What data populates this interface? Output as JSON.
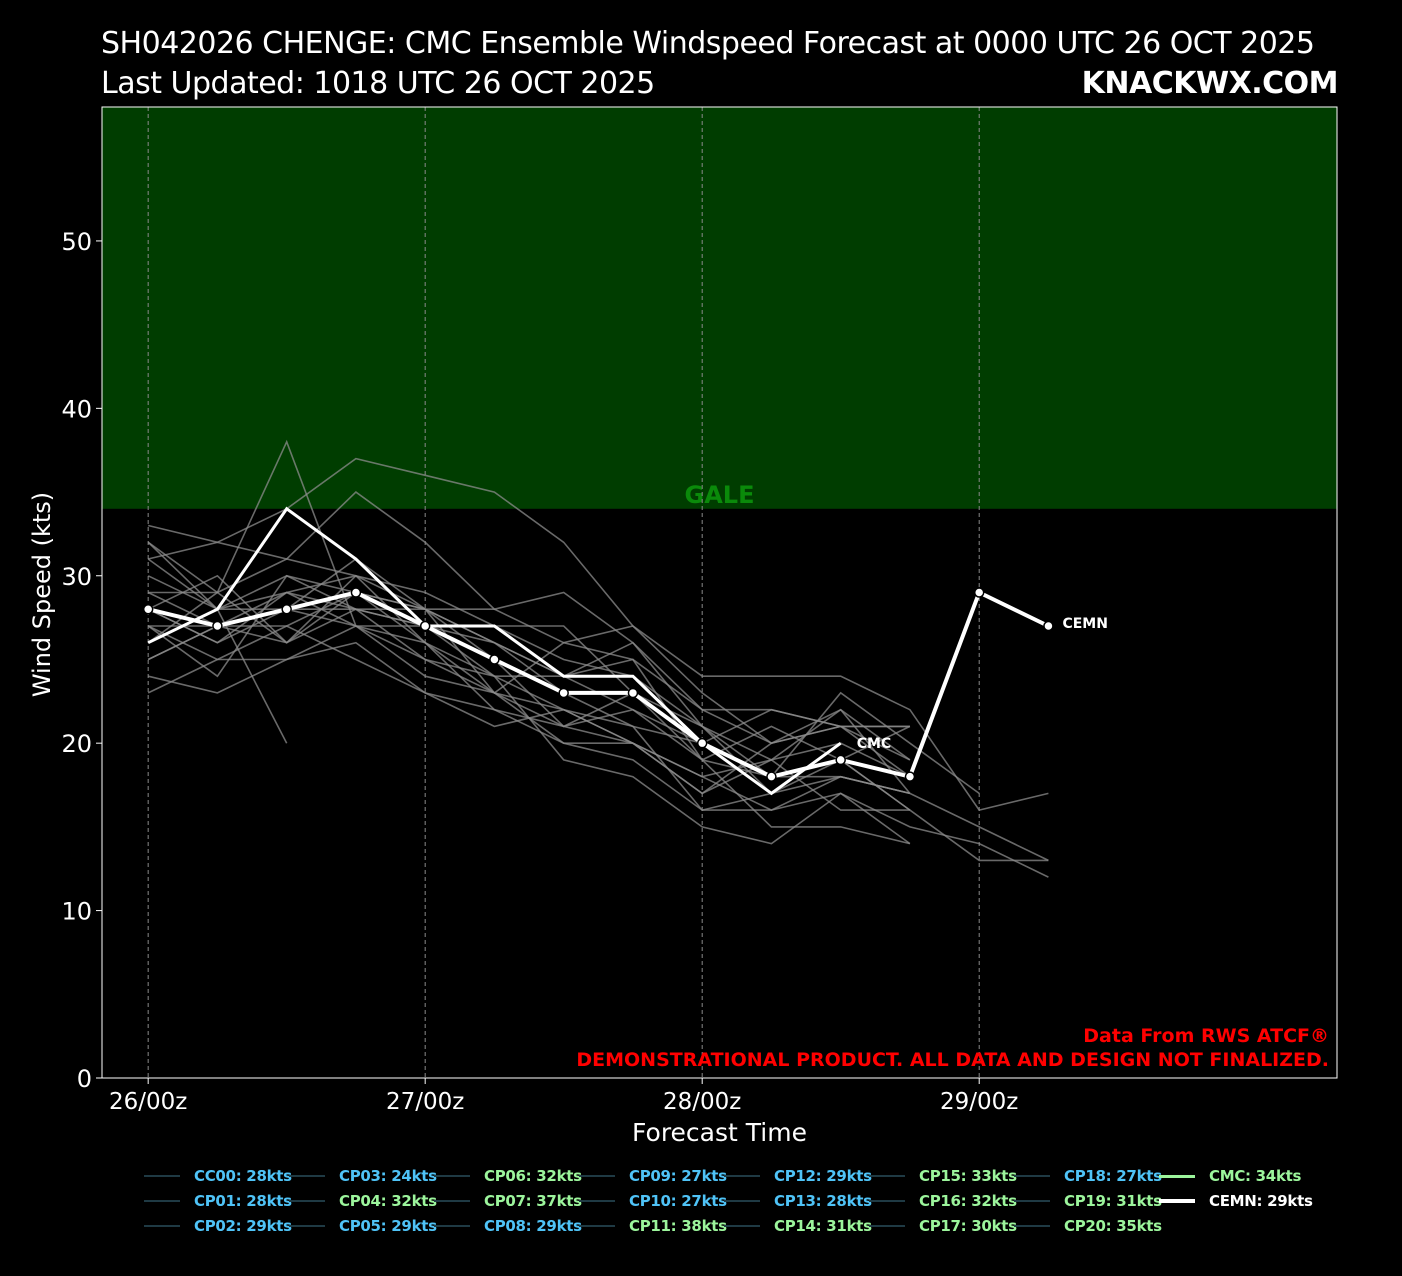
{
  "header": {
    "title": "SH042026 CHENGE: CMC Ensemble Windspeed Forecast at 0000 UTC 26 OCT 2025",
    "subtitle": "Last Updated: 1018 UTC 26 OCT 2025",
    "brand": "KNACKWX.COM"
  },
  "colors": {
    "background": "#000000",
    "gale_band": "#003d00",
    "gale_label": "#0a8a0a",
    "member_line": "#8c8c8c",
    "deterministic": "#ffffff",
    "mean": "#ffffff",
    "disclaimer": "#ff0000",
    "legend_cyan": "#4fc3f7",
    "legend_green": "#9cf59c"
  },
  "chart_data": {
    "type": "line",
    "xlabel": "Forecast Time",
    "ylabel": "Wind Speed (kts)",
    "ylim": [
      0,
      58
    ],
    "yticks": [
      0,
      10,
      20,
      30,
      40,
      50
    ],
    "xlim_hours": [
      -4,
      103
    ],
    "xticks": [
      {
        "hour": 0,
        "label": "26/00z"
      },
      {
        "hour": 24,
        "label": "27/00z"
      },
      {
        "hour": 48,
        "label": "28/00z"
      },
      {
        "hour": 72,
        "label": "29/00z"
      }
    ],
    "grid": "vertical dashed at x ticks",
    "threshold_band": {
      "label": "GALE",
      "from": 34,
      "to": 58
    },
    "annotations": {
      "source": "Data From RWS ATCF®",
      "disclaimer": "DEMONSTRATIONAL PRODUCT. ALL DATA AND DESIGN NOT FINALIZED."
    },
    "x_hours": [
      0,
      6,
      12,
      18,
      24,
      30,
      36,
      42,
      48,
      54,
      60,
      66,
      72,
      78
    ],
    "members": [
      {
        "values": [
          32,
          28,
          28,
          27,
          27,
          24,
          22,
          20,
          18,
          16,
          18,
          17,
          15,
          13
        ]
      },
      {
        "values": [
          33,
          32,
          34,
          37,
          36,
          35,
          32,
          27,
          24,
          24,
          24,
          22,
          16,
          17
        ]
      },
      {
        "values": [
          31,
          32,
          31,
          35,
          32,
          28,
          29,
          26,
          22,
          22,
          21,
          21,
          null,
          null
        ]
      },
      {
        "values": [
          29,
          29,
          38,
          27,
          26,
          24,
          24,
          22,
          20,
          18,
          23,
          20,
          17,
          null
        ]
      },
      {
        "values": [
          28,
          26,
          29,
          30,
          28,
          28,
          26,
          27,
          23,
          20,
          22,
          17,
          null,
          null
        ]
      },
      {
        "values": [
          27,
          24,
          30,
          29,
          28,
          25,
          21,
          23,
          19,
          21,
          19,
          16,
          null,
          null
        ]
      },
      {
        "values": [
          26,
          29,
          31,
          30,
          29,
          27,
          25,
          24,
          21,
          18,
          18,
          17,
          null,
          null
        ]
      },
      {
        "values": [
          25,
          27,
          26,
          28,
          27,
          26,
          23,
          21,
          20,
          22,
          21,
          19,
          null,
          null
        ]
      },
      {
        "values": [
          24,
          23,
          25,
          27,
          25,
          23,
          22,
          20,
          17,
          19,
          20,
          18,
          null,
          null
        ]
      },
      {
        "values": [
          23,
          25,
          27,
          29,
          26,
          22,
          20,
          19,
          16,
          16,
          17,
          14,
          null,
          null
        ]
      },
      {
        "values": [
          28,
          26,
          28,
          28,
          25,
          24,
          19,
          18,
          15,
          14,
          17,
          15,
          14,
          12
        ]
      },
      {
        "values": [
          30,
          28,
          29,
          27,
          24,
          23,
          20,
          20,
          18,
          19,
          16,
          16,
          13,
          13
        ]
      },
      {
        "values": [
          27,
          25,
          25,
          26,
          23,
          22,
          21,
          22,
          19,
          15,
          15,
          14,
          null,
          null
        ]
      },
      {
        "values": [
          29,
          27,
          27,
          25,
          23,
          21,
          22,
          21,
          16,
          17,
          19,
          16,
          null,
          null
        ]
      },
      {
        "values": [
          28,
          30,
          26,
          29,
          28,
          23,
          26,
          25,
          22,
          20,
          21,
          18,
          null,
          null
        ]
      },
      {
        "values": [
          26,
          28,
          30,
          28,
          28,
          26,
          24,
          25,
          19,
          18,
          19,
          21,
          null,
          null
        ]
      },
      {
        "values": [
          31,
          28,
          20,
          null,
          null,
          null,
          null,
          null,
          null,
          null,
          null,
          null,
          null,
          null
        ]
      },
      {
        "values": [
          25,
          27,
          29,
          28,
          27,
          27,
          27,
          23,
          21,
          17,
          18,
          17,
          null,
          null
        ]
      },
      {
        "values": [
          32,
          29,
          26,
          30,
          26,
          23,
          21,
          20,
          17,
          20,
          21,
          21,
          null,
          null
        ]
      },
      {
        "values": [
          27,
          27,
          28,
          31,
          28,
          26,
          24,
          26,
          21,
          19,
          22,
          19,
          null,
          null
        ]
      }
    ],
    "deterministic": {
      "label": "CMC",
      "x_hours": [
        0,
        6,
        12,
        18,
        24,
        30,
        36,
        42,
        48,
        54,
        60
      ],
      "values": [
        26,
        28,
        34,
        31,
        27,
        27,
        24,
        24,
        20,
        17,
        20
      ]
    },
    "mean": {
      "label": "CEMN",
      "x_hours": [
        0,
        6,
        12,
        18,
        24,
        30,
        36,
        42,
        48,
        54,
        60,
        66,
        72,
        78
      ],
      "values": [
        28,
        27,
        28,
        29,
        27,
        25,
        23,
        23,
        20,
        18,
        19,
        18,
        29,
        27
      ]
    },
    "legend": [
      {
        "label": "CC00: 28kts",
        "color": "#4fc3f7"
      },
      {
        "label": "CP01: 28kts",
        "color": "#4fc3f7"
      },
      {
        "label": "CP02: 29kts",
        "color": "#4fc3f7"
      },
      {
        "label": "CP03: 24kts",
        "color": "#4fc3f7"
      },
      {
        "label": "CP04: 32kts",
        "color": "#9cf59c"
      },
      {
        "label": "CP05: 29kts",
        "color": "#4fc3f7"
      },
      {
        "label": "CP06: 32kts",
        "color": "#9cf59c"
      },
      {
        "label": "CP07: 37kts",
        "color": "#9cf59c"
      },
      {
        "label": "CP08: 29kts",
        "color": "#4fc3f7"
      },
      {
        "label": "CP09: 27kts",
        "color": "#4fc3f7"
      },
      {
        "label": "CP10: 27kts",
        "color": "#4fc3f7"
      },
      {
        "label": "CP11: 38kts",
        "color": "#9cf59c"
      },
      {
        "label": "CP12: 29kts",
        "color": "#4fc3f7"
      },
      {
        "label": "CP13: 28kts",
        "color": "#4fc3f7"
      },
      {
        "label": "CP14: 31kts",
        "color": "#9cf59c"
      },
      {
        "label": "CP15: 33kts",
        "color": "#9cf59c"
      },
      {
        "label": "CP16: 32kts",
        "color": "#9cf59c"
      },
      {
        "label": "CP17: 30kts",
        "color": "#9cf59c"
      },
      {
        "label": "CP18: 27kts",
        "color": "#4fc3f7"
      },
      {
        "label": "CP19: 31kts",
        "color": "#9cf59c"
      },
      {
        "label": "CP20: 35kts",
        "color": "#9cf59c"
      },
      {
        "label": "CMC: 34kts",
        "color": "#9cf59c"
      },
      {
        "label": "CEMN: 29kts",
        "color": "#ffffff"
      }
    ]
  }
}
